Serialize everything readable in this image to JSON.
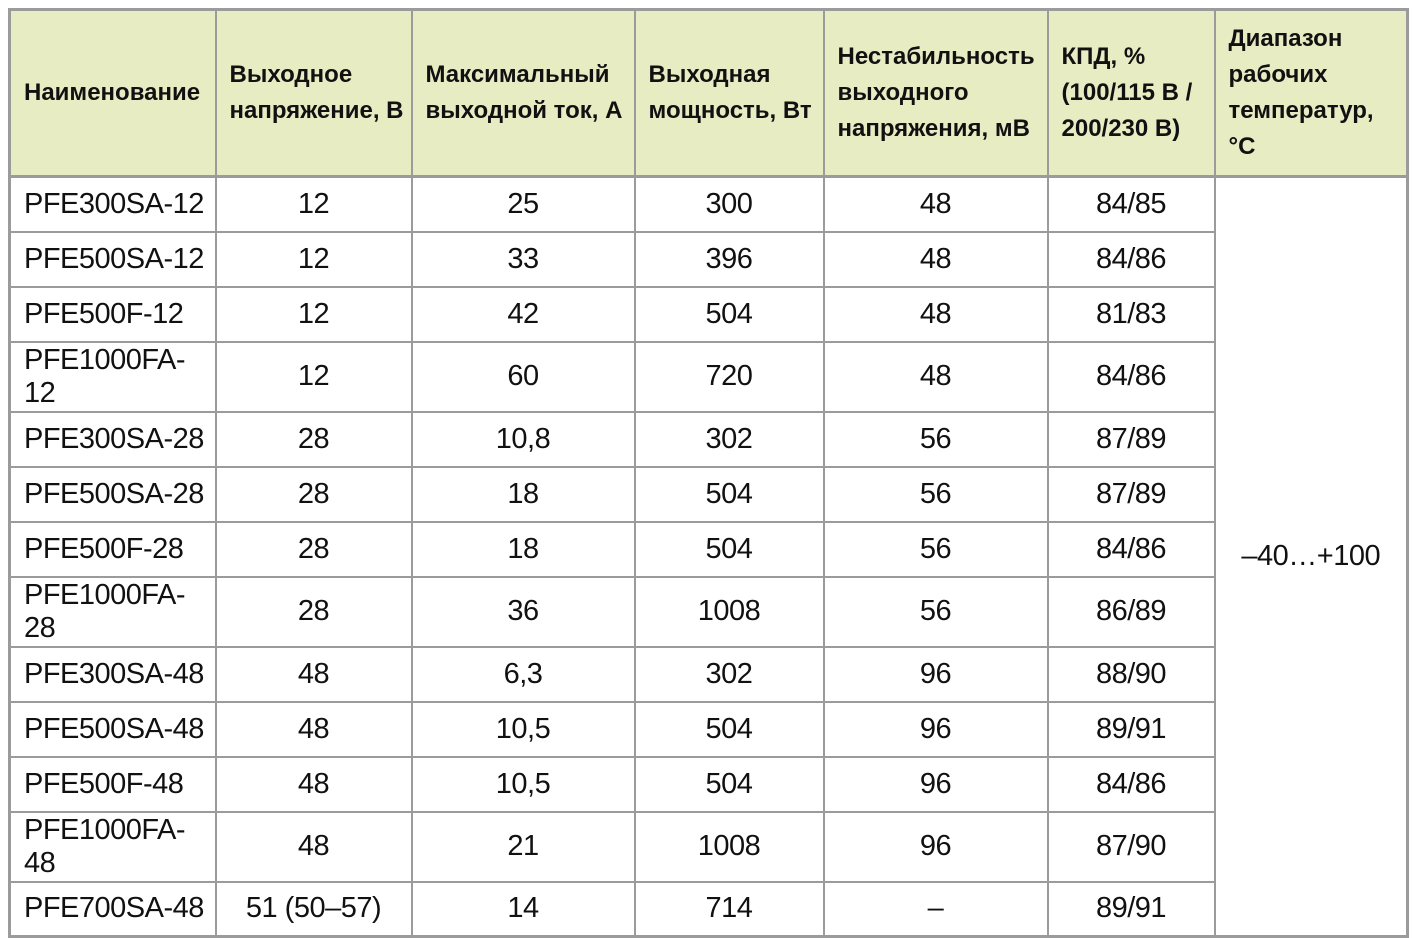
{
  "table": {
    "columns": [
      "Наименование",
      "Выходное\nнапряжение, В",
      "Максимальный\nвыходной ток, А",
      "Выходная\nмощность, Вт",
      "Нестабильность\nвыходного\nнапряжения, мВ",
      "КПД, %\n(100/115 В /\n200/230 В)",
      "Диапазон\nрабочих\nтемператур, °С"
    ],
    "column_keys": [
      "name",
      "output-voltage",
      "max-output-current",
      "output-power",
      "voltage-instability",
      "efficiency"
    ],
    "rows": [
      [
        "PFE300SA-12",
        "12",
        "25",
        "300",
        "48",
        "84/85"
      ],
      [
        "PFE500SA-12",
        "12",
        "33",
        "396",
        "48",
        "84/86"
      ],
      [
        "PFE500F-12",
        "12",
        "42",
        "504",
        "48",
        "81/83"
      ],
      [
        "PFE1000FA-12",
        "12",
        "60",
        "720",
        "48",
        "84/86"
      ],
      [
        "PFE300SA-28",
        "28",
        "10,8",
        "302",
        "56",
        "87/89"
      ],
      [
        "PFE500SA-28",
        "28",
        "18",
        "504",
        "56",
        "87/89"
      ],
      [
        "PFE500F-28",
        "28",
        "18",
        "504",
        "56",
        "84/86"
      ],
      [
        "PFE1000FA-28",
        "28",
        "36",
        "1008",
        "56",
        "86/89"
      ],
      [
        "PFE300SA-48",
        "48",
        "6,3",
        "302",
        "96",
        "88/90"
      ],
      [
        "PFE500SA-48",
        "48",
        "10,5",
        "504",
        "96",
        "89/91"
      ],
      [
        "PFE500F-48",
        "48",
        "10,5",
        "504",
        "96",
        "84/86"
      ],
      [
        "PFE1000FA-48",
        "48",
        "21",
        "1008",
        "96",
        "87/90"
      ],
      [
        "PFE700SA-48",
        "51 (50–57)",
        "14",
        "714",
        "–",
        "89/91"
      ]
    ],
    "temperature_range": "–40…+100",
    "colors": {
      "header_background": "#e8ecc3",
      "border": "#9b9b9b",
      "row_background": "#ffffff",
      "text": "#111111"
    }
  }
}
